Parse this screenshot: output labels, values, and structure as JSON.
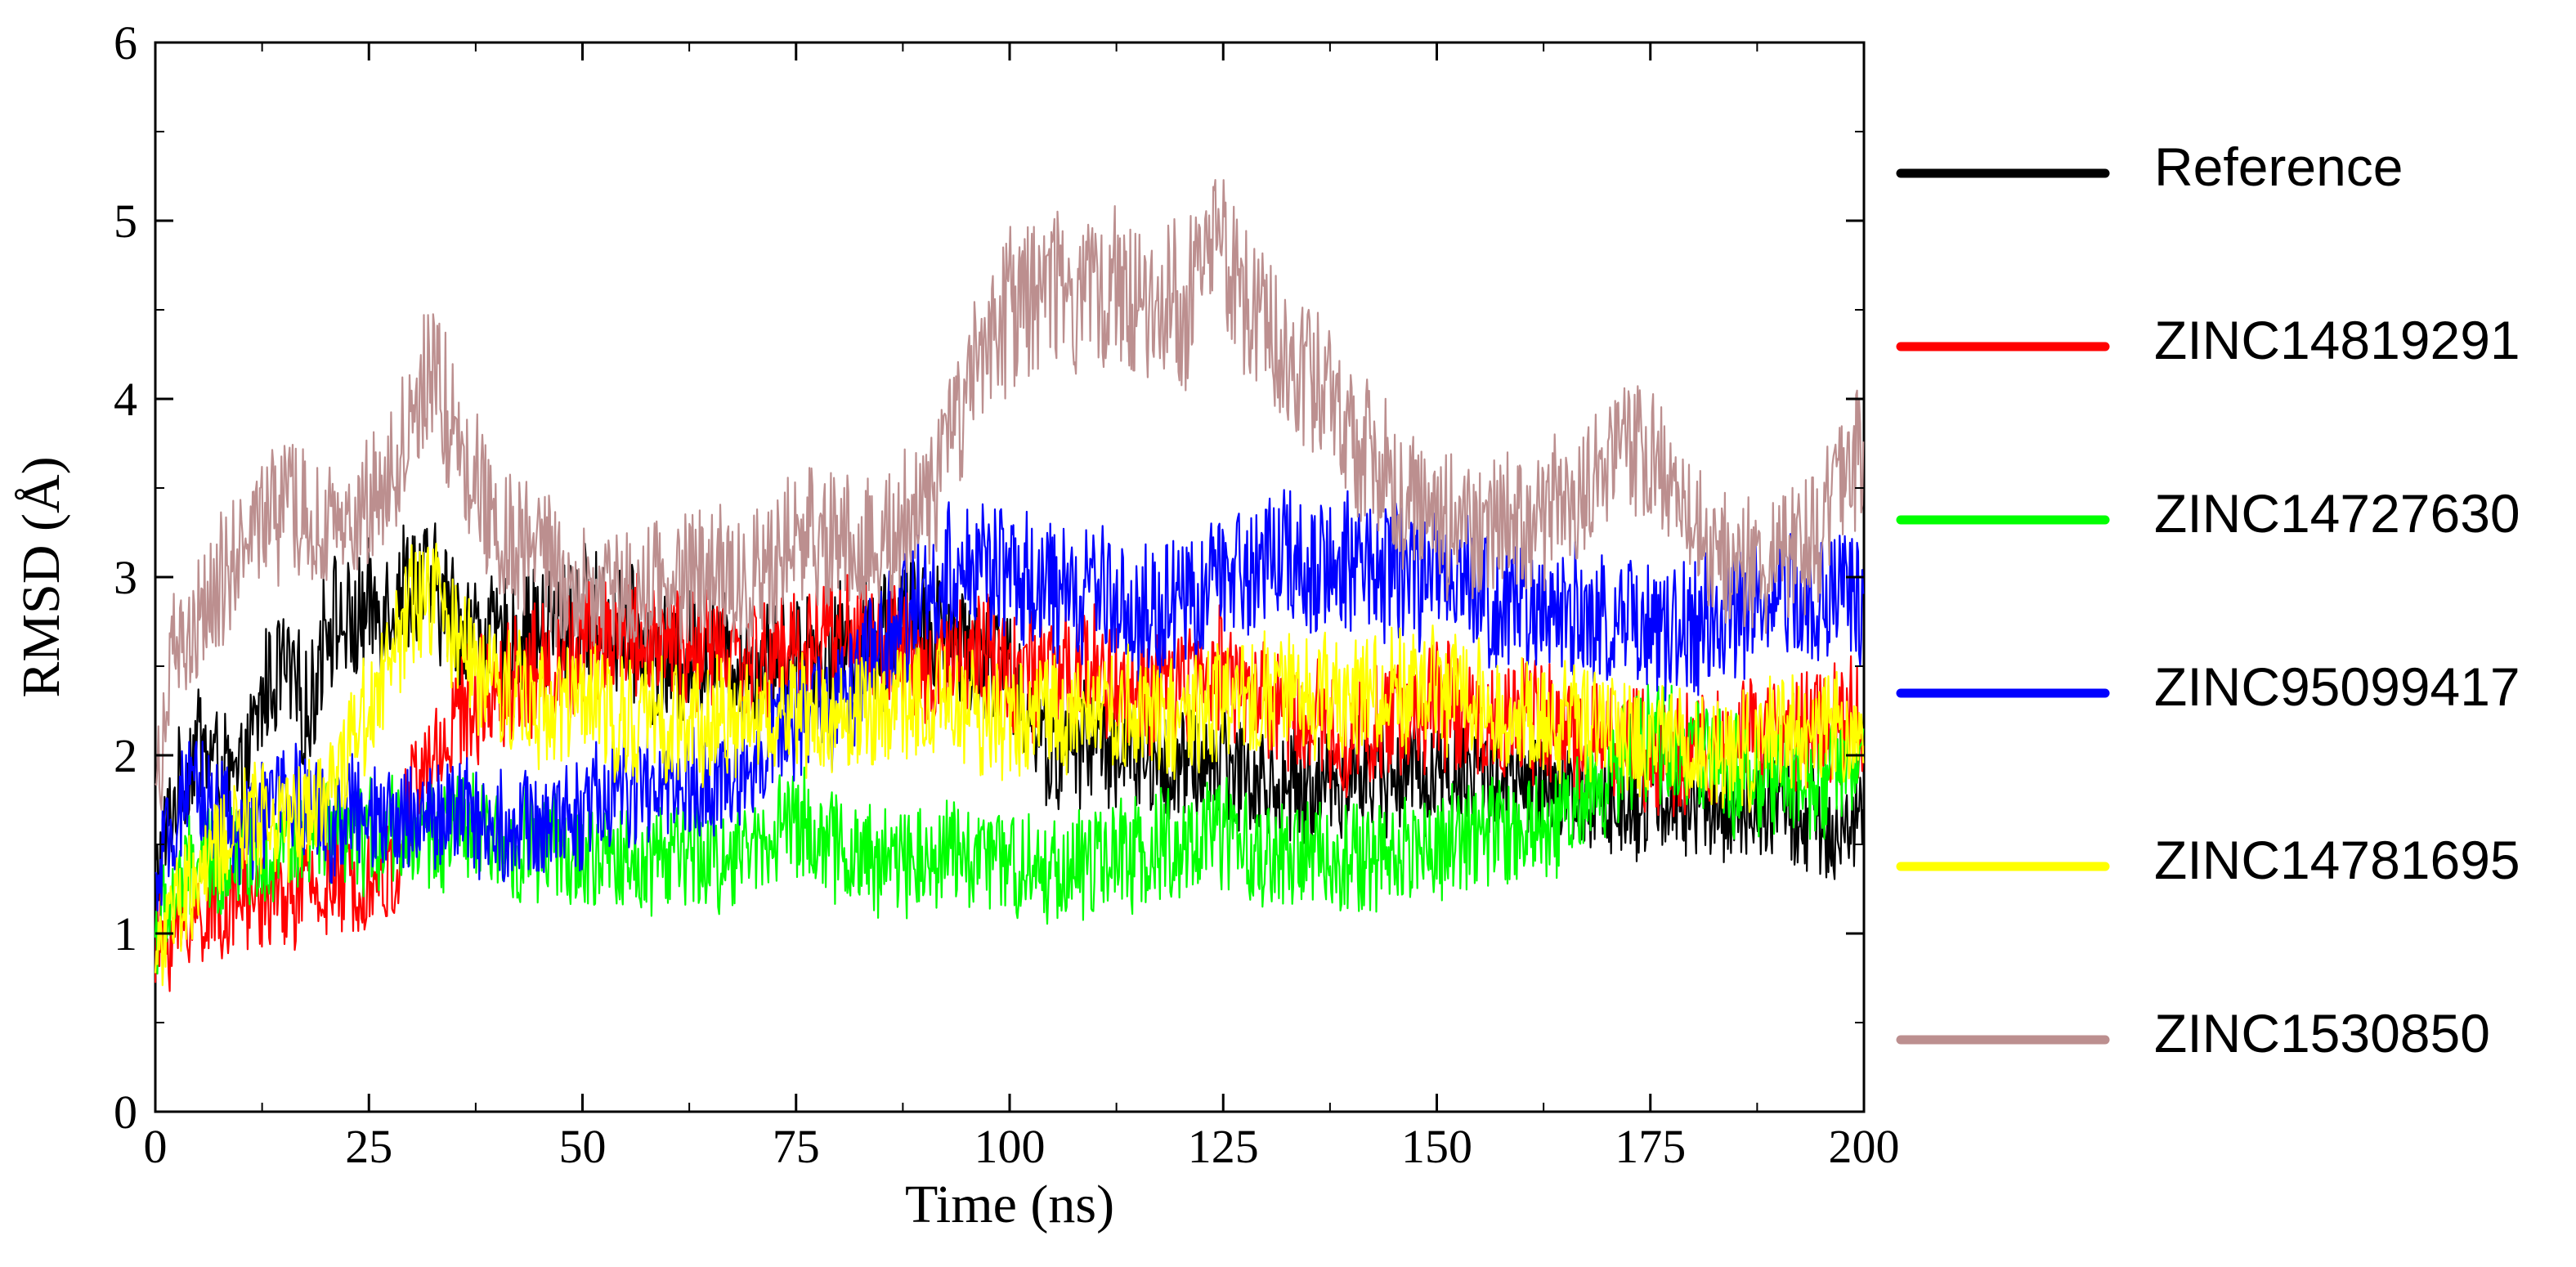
{
  "chart_data": {
    "type": "line",
    "title": "",
    "xlabel": "Time (ns)",
    "ylabel": "RMSD (Å)",
    "xlim": [
      0,
      200
    ],
    "ylim": [
      0,
      6
    ],
    "xticks": [
      0,
      25,
      50,
      75,
      100,
      125,
      150,
      175,
      200
    ],
    "yticks": [
      0,
      1,
      2,
      3,
      4,
      5,
      6
    ],
    "grid": false,
    "legend_position": "right",
    "series": [
      {
        "name": "Reference",
        "color": "#000000",
        "x": [
          0,
          2,
          5,
          8,
          10,
          13,
          15,
          18,
          20,
          23,
          25,
          28,
          30,
          33,
          35,
          40,
          45,
          50,
          55,
          60,
          65,
          70,
          75,
          80,
          85,
          90,
          95,
          100,
          105,
          110,
          115,
          120,
          125,
          130,
          135,
          140,
          145,
          150,
          155,
          160,
          165,
          170,
          175,
          180,
          185,
          190,
          195,
          200
        ],
        "y": [
          1.3,
          1.7,
          2.1,
          1.9,
          1.8,
          2.4,
          2.5,
          2.2,
          2.8,
          2.7,
          2.8,
          2.9,
          3.0,
          2.9,
          2.8,
          2.6,
          2.7,
          2.8,
          2.7,
          2.5,
          2.6,
          2.5,
          2.6,
          2.6,
          2.7,
          2.8,
          2.6,
          2.5,
          2.0,
          2.1,
          2.0,
          1.9,
          2.0,
          1.8,
          1.8,
          1.9,
          1.9,
          1.9,
          1.9,
          1.8,
          1.8,
          1.7,
          1.8,
          1.7,
          1.7,
          1.7,
          1.6,
          1.6
        ]
      },
      {
        "name": "ZINC14819291",
        "color": "#ff0000",
        "x": [
          0,
          2,
          5,
          8,
          10,
          13,
          15,
          18,
          20,
          23,
          25,
          28,
          30,
          33,
          35,
          40,
          45,
          50,
          55,
          60,
          65,
          70,
          75,
          80,
          85,
          90,
          95,
          100,
          105,
          110,
          115,
          120,
          125,
          130,
          135,
          140,
          145,
          150,
          155,
          160,
          165,
          170,
          175,
          180,
          185,
          190,
          195,
          200
        ],
        "y": [
          0.9,
          1.0,
          1.1,
          1.15,
          1.2,
          1.2,
          1.2,
          1.25,
          1.25,
          1.3,
          1.3,
          1.3,
          1.8,
          2.0,
          2.2,
          2.4,
          2.5,
          2.6,
          2.7,
          2.6,
          2.6,
          2.5,
          2.6,
          2.7,
          2.6,
          2.5,
          2.6,
          2.5,
          2.4,
          2.5,
          2.3,
          2.4,
          2.5,
          2.3,
          2.2,
          2.1,
          2.2,
          2.3,
          2.2,
          2.2,
          2.1,
          2.1,
          2.0,
          2.0,
          2.1,
          2.1,
          2.2,
          2.2
        ]
      },
      {
        "name": "ZINC14727630",
        "color": "#00ff00",
        "x": [
          0,
          2,
          5,
          8,
          10,
          13,
          15,
          18,
          20,
          23,
          25,
          28,
          30,
          33,
          35,
          40,
          45,
          50,
          55,
          60,
          65,
          70,
          75,
          80,
          85,
          90,
          95,
          100,
          105,
          110,
          115,
          120,
          125,
          130,
          135,
          140,
          145,
          150,
          155,
          160,
          165,
          170,
          175,
          180,
          185,
          190,
          195,
          200
        ],
        "y": [
          1.0,
          1.2,
          1.4,
          1.4,
          1.5,
          1.45,
          1.5,
          1.5,
          1.55,
          1.5,
          1.55,
          1.6,
          1.55,
          1.55,
          1.6,
          1.5,
          1.5,
          1.4,
          1.4,
          1.45,
          1.4,
          1.5,
          1.65,
          1.45,
          1.4,
          1.45,
          1.45,
          1.4,
          1.35,
          1.4,
          1.45,
          1.5,
          1.55,
          1.4,
          1.45,
          1.4,
          1.45,
          1.5,
          1.55,
          1.6,
          1.65,
          1.9,
          2.1,
          2.0,
          1.9,
          1.85,
          1.85,
          1.9
        ]
      },
      {
        "name": "ZINC95099417",
        "color": "#0000ff",
        "x": [
          0,
          2,
          5,
          8,
          10,
          13,
          15,
          18,
          20,
          23,
          25,
          28,
          30,
          33,
          35,
          40,
          45,
          50,
          55,
          60,
          65,
          70,
          75,
          80,
          85,
          90,
          95,
          100,
          105,
          110,
          115,
          120,
          125,
          130,
          135,
          140,
          145,
          150,
          155,
          160,
          165,
          170,
          175,
          180,
          185,
          190,
          195,
          200
        ],
        "y": [
          1.2,
          1.6,
          1.8,
          1.7,
          1.5,
          1.7,
          1.8,
          1.7,
          1.6,
          1.7,
          1.6,
          1.6,
          1.7,
          1.65,
          1.7,
          1.6,
          1.6,
          1.7,
          1.8,
          1.8,
          1.8,
          2.0,
          2.2,
          2.3,
          2.6,
          2.9,
          3.1,
          3.0,
          2.9,
          2.9,
          2.8,
          2.8,
          3.0,
          3.1,
          3.1,
          3.1,
          3.0,
          3.0,
          2.9,
          2.8,
          2.8,
          2.8,
          2.7,
          2.7,
          2.8,
          2.9,
          2.9,
          2.9
        ]
      },
      {
        "name": "ZINC14781695",
        "color": "#ffff00",
        "x": [
          0,
          2,
          5,
          8,
          10,
          13,
          15,
          18,
          20,
          23,
          25,
          28,
          30,
          33,
          35,
          40,
          45,
          50,
          55,
          60,
          65,
          70,
          75,
          80,
          85,
          90,
          95,
          100,
          105,
          110,
          115,
          120,
          125,
          130,
          135,
          140,
          145,
          150,
          155,
          160,
          165,
          170,
          175,
          180,
          185,
          190,
          195,
          200
        ],
        "y": [
          0.9,
          1.1,
          1.3,
          1.5,
          1.6,
          1.7,
          1.6,
          1.7,
          1.8,
          2.1,
          2.3,
          2.6,
          2.8,
          2.9,
          2.6,
          2.4,
          2.3,
          2.3,
          2.2,
          2.2,
          2.2,
          2.2,
          2.25,
          2.2,
          2.25,
          2.3,
          2.25,
          2.2,
          2.25,
          2.3,
          2.25,
          2.2,
          2.3,
          2.35,
          2.35,
          2.3,
          2.4,
          2.35,
          2.3,
          2.25,
          2.2,
          2.15,
          2.1,
          2.05,
          2.0,
          2.1,
          2.15,
          2.2
        ]
      },
      {
        "name": "ZINC1530850",
        "color": "#bc8f8f",
        "x": [
          0,
          2,
          5,
          8,
          10,
          13,
          15,
          18,
          20,
          23,
          25,
          28,
          30,
          33,
          35,
          40,
          45,
          50,
          55,
          60,
          65,
          70,
          75,
          80,
          85,
          90,
          95,
          100,
          105,
          110,
          115,
          120,
          125,
          130,
          135,
          140,
          145,
          150,
          155,
          160,
          165,
          170,
          175,
          180,
          185,
          190,
          195,
          200
        ],
        "y": [
          1.8,
          2.5,
          2.7,
          3.0,
          3.2,
          3.3,
          3.4,
          3.3,
          3.2,
          3.3,
          3.4,
          3.6,
          3.9,
          4.1,
          3.8,
          3.3,
          3.1,
          2.9,
          2.9,
          3.0,
          3.0,
          3.0,
          3.2,
          3.2,
          3.2,
          3.4,
          4.0,
          4.5,
          4.6,
          4.6,
          4.6,
          4.5,
          4.8,
          4.4,
          4.1,
          3.8,
          3.5,
          3.3,
          3.3,
          3.3,
          3.4,
          3.6,
          3.7,
          3.3,
          3.0,
          3.1,
          3.3,
          3.7
        ]
      }
    ]
  }
}
